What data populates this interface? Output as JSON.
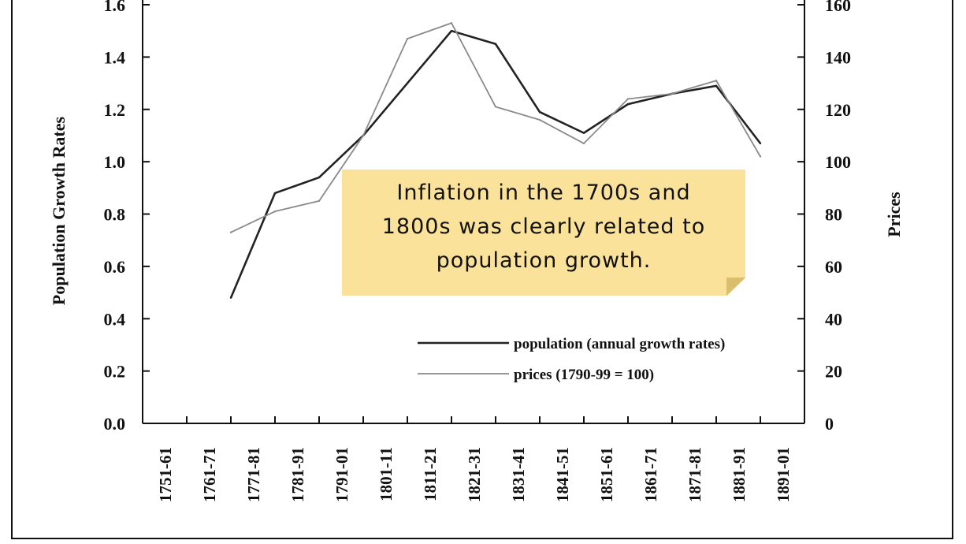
{
  "note": {
    "lines": [
      "Inflation in the 1700s and",
      "1800s was clearly related to",
      "population growth."
    ],
    "color": "#fbe29a"
  },
  "chart_data": {
    "type": "line",
    "categories": [
      "1751-61",
      "1761-71",
      "1771-81",
      "1781-91",
      "1791-01",
      "1801-11",
      "1811-21",
      "1821-31",
      "1831-41",
      "1841-51",
      "1851-61",
      "1861-71",
      "1871-81",
      "1881-91",
      "1891-01"
    ],
    "ylabel": "Population Growth Rates",
    "y2label": "Prices",
    "ylim": [
      0,
      1.6
    ],
    "y2lim": [
      0,
      160
    ],
    "yticks": [
      "0.0",
      "0.2",
      "0.4",
      "0.6",
      "0.8",
      "1.0",
      "1.2",
      "1.4",
      "1.6"
    ],
    "y2ticks": [
      "0",
      "20",
      "40",
      "60",
      "80",
      "100",
      "120",
      "140",
      "160"
    ],
    "series": [
      {
        "name": "population (annual growth rates)",
        "axis": "left",
        "color": "#222222",
        "values": [
          null,
          0.48,
          0.88,
          0.94,
          1.1,
          1.3,
          1.5,
          1.45,
          1.19,
          1.11,
          1.22,
          1.26,
          1.29,
          1.07,
          null
        ]
      },
      {
        "name": "prices (1790-99 = 100)",
        "axis": "right",
        "color": "#8a8a8a",
        "values": [
          null,
          73,
          81,
          85,
          110,
          147,
          153,
          121,
          116,
          107,
          124,
          126,
          131,
          102,
          null
        ]
      }
    ],
    "legend_position": "lower-right"
  }
}
